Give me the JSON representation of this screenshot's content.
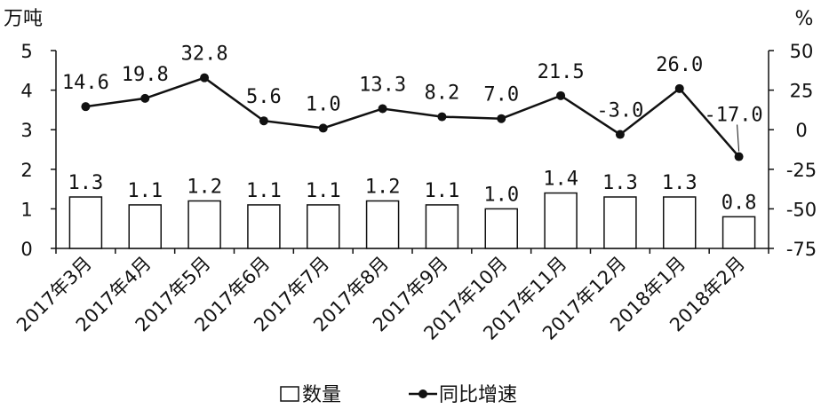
{
  "chart_data": {
    "type": "bar",
    "categories": [
      "2017年3月",
      "2017年4月",
      "2017年5月",
      "2017年6月",
      "2017年7月",
      "2017年8月",
      "2017年9月",
      "2017年10月",
      "2017年11月",
      "2017年12月",
      "2018年1月",
      "2018年2月"
    ],
    "series": [
      {
        "name": "数量",
        "type": "bar",
        "axis": "left",
        "values": [
          1.3,
          1.1,
          1.2,
          1.1,
          1.1,
          1.2,
          1.1,
          1.0,
          1.4,
          1.3,
          1.3,
          0.8
        ],
        "labels": [
          "1.3",
          "1.1",
          "1.2",
          "1.1",
          "1.1",
          "1.2",
          "1.1",
          "1.0",
          "1.4",
          "1.3",
          "1.3",
          "0.8"
        ]
      },
      {
        "name": "同比增速",
        "type": "line",
        "axis": "right",
        "values": [
          14.6,
          19.8,
          32.8,
          5.6,
          1.0,
          13.3,
          8.2,
          7.0,
          21.5,
          -3.0,
          26.0,
          -17.0
        ],
        "labels": [
          "14.6",
          "19.8",
          "32.8",
          "5.6",
          "1.0",
          "13.3",
          "8.2",
          "7.0",
          "21.5",
          "-3.0",
          "26.0",
          "-17.0"
        ]
      }
    ],
    "left_axis": {
      "unit": "万吨",
      "ylim": [
        0,
        5
      ],
      "ticks": [
        "0",
        "1",
        "2",
        "3",
        "4",
        "5"
      ]
    },
    "right_axis": {
      "unit": "%",
      "ylim": [
        -75,
        50
      ],
      "ticks": [
        "-75",
        "-50",
        "-25",
        "0",
        "25",
        "50"
      ]
    },
    "legend_position": "bottom",
    "grid": false
  }
}
